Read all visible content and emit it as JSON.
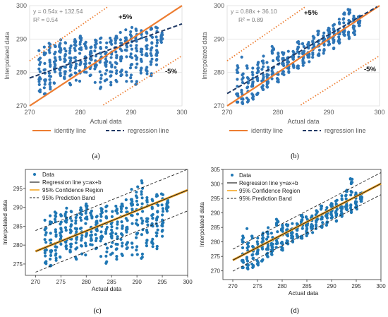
{
  "chart_data": [
    {
      "id": "a",
      "type": "scatter",
      "caption": "(a)",
      "xlabel": "Actual data",
      "ylabel": "Interpolated data",
      "xlim": [
        270,
        300
      ],
      "ylim": [
        270,
        300
      ],
      "xticks": [
        "270",
        "280",
        "290",
        "300"
      ],
      "yticks": [
        "270",
        "280",
        "290",
        "300"
      ],
      "equation": "y = 0.54x + 132.54",
      "r2": "R² = 0.54",
      "regression": {
        "slope": 0.54,
        "intercept": 132.54
      },
      "band_upper_label": "+5%",
      "band_lower_label": "-5%",
      "legend": [
        {
          "label": "identity line",
          "style": "solid",
          "color": "#ED7D31"
        },
        {
          "label": "regression line",
          "style": "dashed",
          "color": "#1F3864"
        }
      ],
      "point_color": "#2E75B6",
      "x_columns": [
        272,
        273,
        274,
        275,
        276,
        277,
        278,
        279,
        280,
        281,
        282,
        283,
        284,
        285,
        286,
        287,
        288,
        289,
        290,
        291,
        292,
        293,
        294,
        295,
        296
      ],
      "col_ranges": [
        [
          273,
          287
        ],
        [
          273,
          290
        ],
        [
          274,
          289
        ],
        [
          276,
          289
        ],
        [
          278,
          290
        ],
        [
          278,
          289
        ],
        [
          276,
          288
        ],
        [
          276,
          290
        ],
        [
          277,
          292
        ],
        [
          279,
          291
        ],
        [
          279,
          288
        ],
        [
          277,
          290
        ],
        [
          275,
          291
        ],
        [
          277,
          289
        ],
        [
          276,
          291
        ],
        [
          276,
          291
        ],
        [
          276,
          292
        ],
        [
          277,
          293
        ],
        [
          276,
          294
        ],
        [
          276,
          293
        ],
        [
          277,
          294
        ],
        [
          279,
          294
        ],
        [
          279,
          294
        ],
        [
          282,
          294
        ],
        [
          289,
          292
        ]
      ],
      "seed": 11,
      "points_per_col": 18
    },
    {
      "id": "b",
      "type": "scatter",
      "caption": "(b)",
      "xlabel": "Actual data",
      "ylabel": "Interpolated data",
      "xlim": [
        270,
        300
      ],
      "ylim": [
        270,
        300
      ],
      "xticks": [
        "270",
        "280",
        "290",
        "300"
      ],
      "yticks": [
        "270",
        "280",
        "290",
        "300"
      ],
      "equation": "y = 0.88x + 36.10",
      "r2": "R² = 0.89",
      "regression": {
        "slope": 0.88,
        "intercept": 36.1
      },
      "band_upper_label": "+5%",
      "band_lower_label": "-5%",
      "legend": [
        {
          "label": "identity line",
          "style": "solid",
          "color": "#ED7D31"
        },
        {
          "label": "regression line",
          "style": "dashed",
          "color": "#1F3864"
        }
      ],
      "point_color": "#2E75B6",
      "x_columns": [
        272,
        273,
        274,
        275,
        276,
        277,
        278,
        279,
        280,
        281,
        282,
        283,
        284,
        285,
        286,
        287,
        288,
        289,
        290,
        291,
        292,
        293,
        294,
        295,
        296
      ],
      "col_ranges": [
        [
          270,
          284
        ],
        [
          270,
          285
        ],
        [
          271,
          282
        ],
        [
          272,
          282
        ],
        [
          273,
          284
        ],
        [
          274,
          285
        ],
        [
          275,
          286
        ],
        [
          276,
          288
        ],
        [
          277,
          287
        ],
        [
          279,
          287
        ],
        [
          280,
          287
        ],
        [
          280,
          288
        ],
        [
          281,
          290
        ],
        [
          282,
          290
        ],
        [
          283,
          289
        ],
        [
          284,
          291
        ],
        [
          285,
          293
        ],
        [
          285,
          292
        ],
        [
          286,
          294
        ],
        [
          287,
          295
        ],
        [
          288,
          296
        ],
        [
          289,
          298
        ],
        [
          290,
          299
        ],
        [
          291,
          297
        ],
        [
          294,
          297
        ]
      ],
      "seed": 23,
      "points_per_col": 16
    },
    {
      "id": "c",
      "type": "scatter",
      "caption": "(c)",
      "xlabel": "Actual data",
      "ylabel": "Interpolated data",
      "xlim": [
        268,
        300
      ],
      "ylim": [
        272,
        300
      ],
      "xticks": [
        "270",
        "275",
        "280",
        "285",
        "290",
        "295",
        "300"
      ],
      "yticks": [
        "275",
        "280",
        "285",
        "290",
        "295"
      ],
      "regression": {
        "slope": 0.54,
        "intercept": 132.54
      },
      "band_offset": 5.5,
      "legend": [
        {
          "label": "Data",
          "style": "dot",
          "color": "#1F77B4"
        },
        {
          "label": "Regression line y=ax+b",
          "style": "solid",
          "color": "#222222"
        },
        {
          "label": "95% Confidence Region",
          "style": "solid",
          "color": "#F5A623"
        },
        {
          "label": "95% Prediction Band",
          "style": "dashed",
          "color": "#222222"
        }
      ],
      "point_color": "#1F77B4",
      "x_columns": [
        272,
        273,
        274,
        275,
        276,
        277,
        278,
        279,
        280,
        281,
        282,
        283,
        284,
        285,
        286,
        287,
        288,
        289,
        290,
        291,
        292,
        293,
        294,
        295,
        296
      ],
      "col_ranges": [
        [
          274,
          287
        ],
        [
          274,
          290
        ],
        [
          275,
          289
        ],
        [
          276,
          289
        ],
        [
          278,
          290
        ],
        [
          278,
          289
        ],
        [
          276,
          288
        ],
        [
          276,
          290
        ],
        [
          277,
          292
        ],
        [
          279,
          291
        ],
        [
          279,
          288
        ],
        [
          277,
          290
        ],
        [
          275,
          291
        ],
        [
          277,
          289
        ],
        [
          276,
          291
        ],
        [
          276,
          291
        ],
        [
          276,
          292
        ],
        [
          277,
          295
        ],
        [
          276,
          296
        ],
        [
          276,
          297
        ],
        [
          277,
          294
        ],
        [
          279,
          294
        ],
        [
          279,
          294
        ],
        [
          282,
          294
        ],
        [
          289,
          292
        ]
      ],
      "seed": 11,
      "points_per_col": 18
    },
    {
      "id": "d",
      "type": "scatter",
      "caption": "(d)",
      "xlabel": "Actual data",
      "ylabel": "Interpolated data",
      "xlim": [
        268,
        300
      ],
      "ylim": [
        267,
        305
      ],
      "xticks": [
        "270",
        "275",
        "280",
        "285",
        "290",
        "295",
        "300"
      ],
      "yticks": [
        "270",
        "275",
        "280",
        "285",
        "290",
        "295",
        "300",
        "305"
      ],
      "regression": {
        "slope": 0.88,
        "intercept": 36.1
      },
      "band_offset": 3.8,
      "legend": [
        {
          "label": "Data",
          "style": "dot",
          "color": "#1F77B4"
        },
        {
          "label": "Regression line y=ax+b",
          "style": "solid",
          "color": "#222222"
        },
        {
          "label": "95% Confidence Region",
          "style": "solid",
          "color": "#F5A623"
        },
        {
          "label": "95% Prediction Band",
          "style": "dashed",
          "color": "#222222"
        }
      ],
      "point_color": "#1F77B4",
      "x_columns": [
        272,
        273,
        274,
        275,
        276,
        277,
        278,
        279,
        280,
        281,
        282,
        283,
        284,
        285,
        286,
        287,
        288,
        289,
        290,
        291,
        292,
        293,
        294,
        295,
        296
      ],
      "col_ranges": [
        [
          270,
          284
        ],
        [
          270,
          285
        ],
        [
          271,
          282
        ],
        [
          272,
          282
        ],
        [
          273,
          284
        ],
        [
          274,
          285
        ],
        [
          275,
          286
        ],
        [
          276,
          288
        ],
        [
          277,
          287
        ],
        [
          279,
          287
        ],
        [
          280,
          287
        ],
        [
          280,
          288
        ],
        [
          281,
          290
        ],
        [
          282,
          290
        ],
        [
          283,
          289
        ],
        [
          284,
          291
        ],
        [
          285,
          293
        ],
        [
          285,
          292
        ],
        [
          286,
          294
        ],
        [
          287,
          295
        ],
        [
          288,
          296
        ],
        [
          289,
          298
        ],
        [
          290,
          302
        ],
        [
          291,
          297
        ],
        [
          294,
          297
        ]
      ],
      "seed": 23,
      "points_per_col": 16
    }
  ]
}
